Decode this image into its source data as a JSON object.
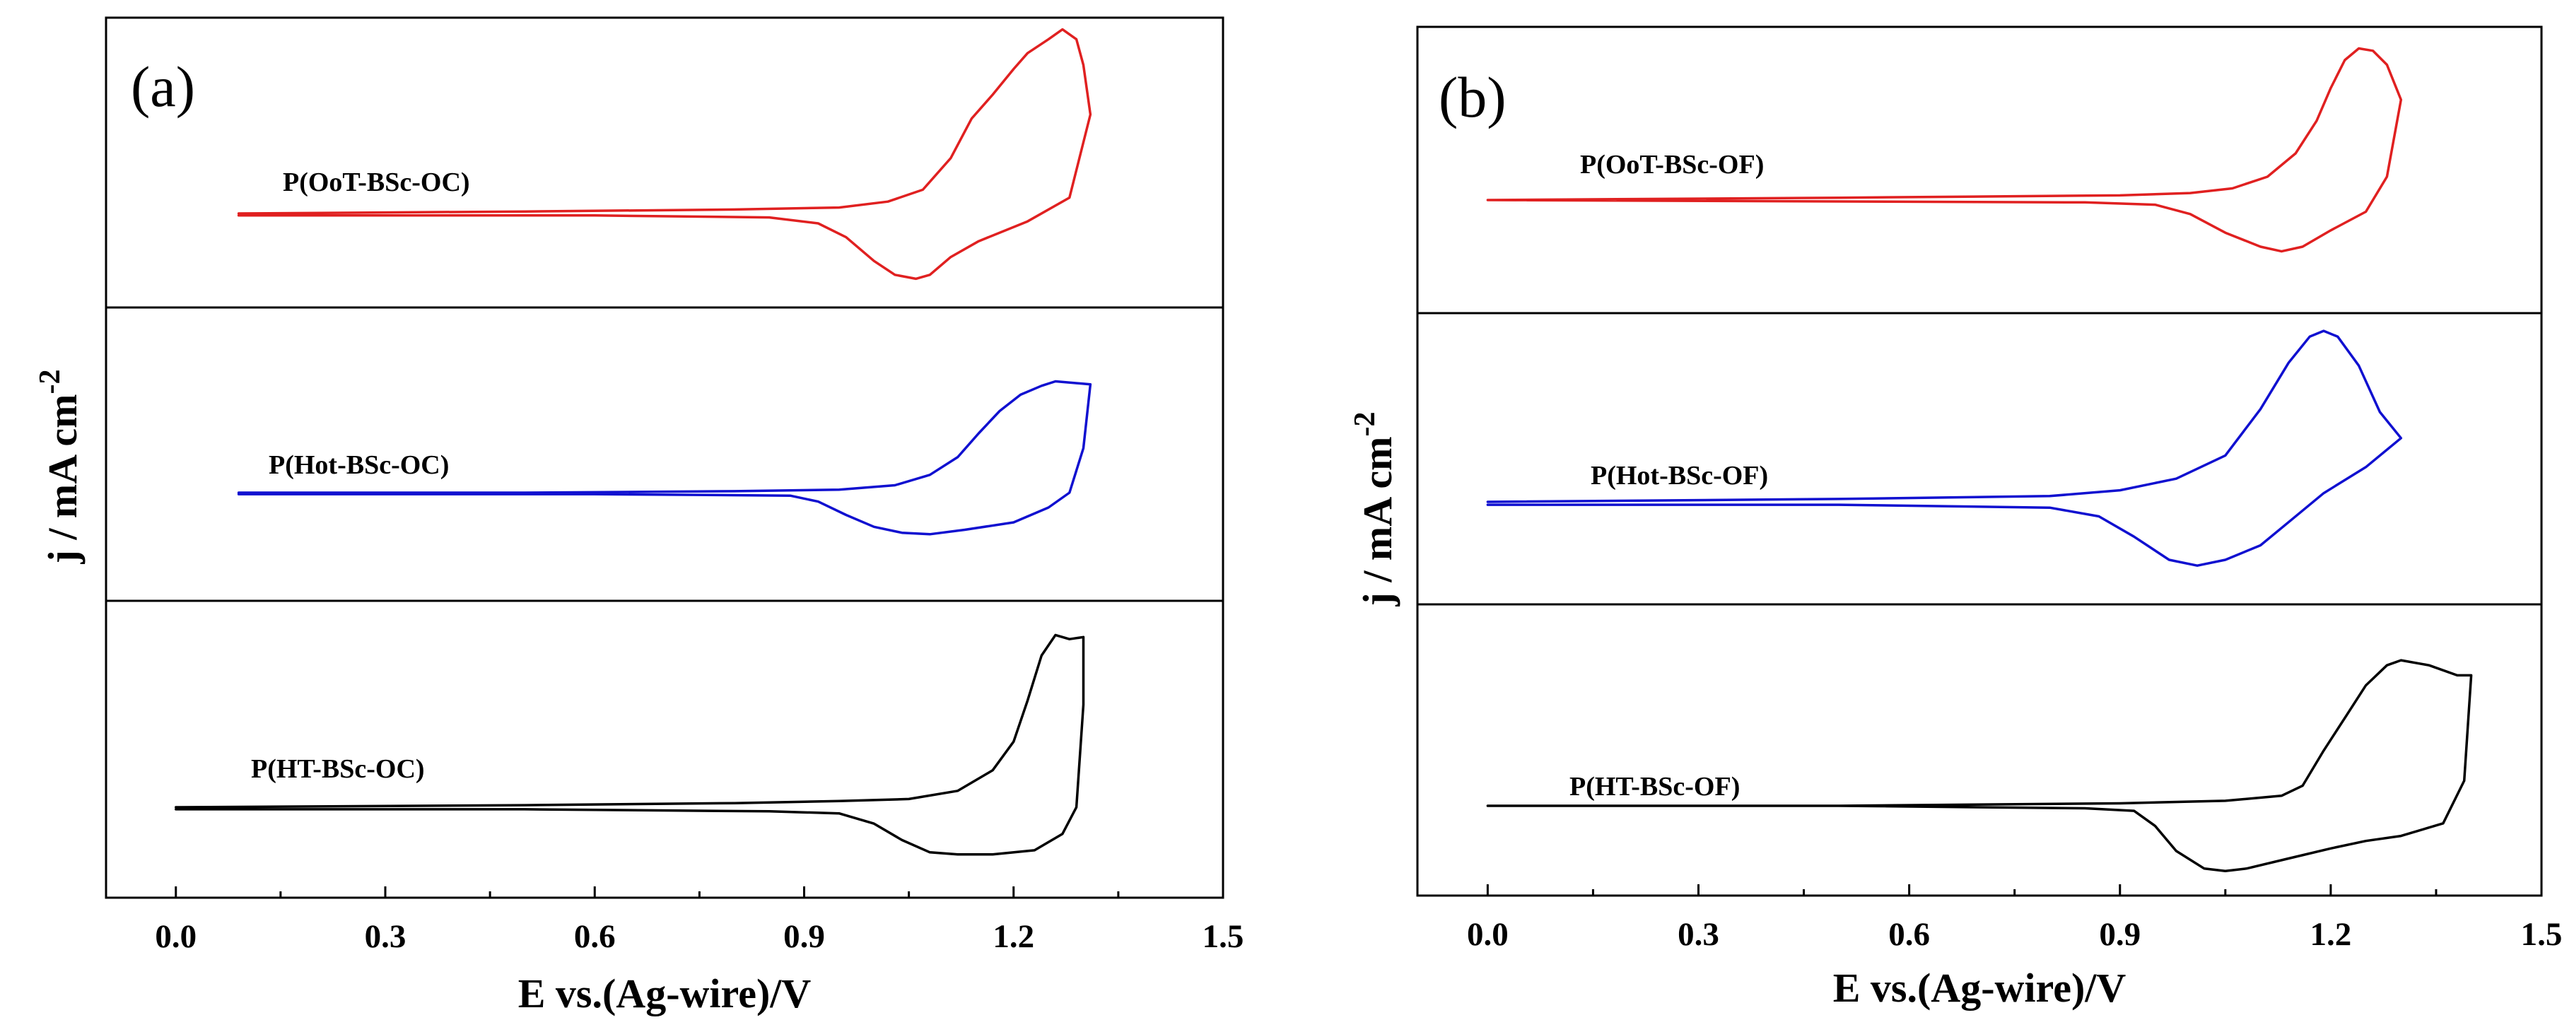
{
  "chart_data": [
    {
      "type": "line",
      "panel_label": "(a)",
      "xlabel": "E vs.(Ag-wire)/V",
      "ylabel": "j / mA cm-2",
      "ylabel_main": "j / mA cm",
      "ylabel_sup": "-2",
      "xlim": [
        -0.1,
        1.5
      ],
      "xticks": [
        "0.0",
        "0.3",
        "0.6",
        "0.9",
        "1.2",
        "1.5"
      ],
      "xtick_values": [
        0.0,
        0.3,
        0.6,
        0.9,
        1.2,
        1.5
      ],
      "grid": false,
      "stacked_subpanels": 3,
      "series": [
        {
          "name": "P(OoT-BSc-OC)",
          "color": "#e02020",
          "panel": 0,
          "anodic": [
            [
              0.09,
              0.0
            ],
            [
              0.5,
              0.01
            ],
            [
              0.8,
              0.02
            ],
            [
              0.95,
              0.03
            ],
            [
              1.02,
              0.06
            ],
            [
              1.07,
              0.12
            ],
            [
              1.11,
              0.28
            ],
            [
              1.14,
              0.48
            ],
            [
              1.17,
              0.6
            ],
            [
              1.2,
              0.73
            ],
            [
              1.22,
              0.81
            ],
            [
              1.25,
              0.88
            ],
            [
              1.27,
              0.93
            ],
            [
              1.29,
              0.88
            ],
            [
              1.3,
              0.75
            ],
            [
              1.31,
              0.5
            ]
          ],
          "cathodic": [
            [
              1.31,
              0.5
            ],
            [
              1.28,
              0.08
            ],
            [
              1.22,
              -0.04
            ],
            [
              1.15,
              -0.14
            ],
            [
              1.11,
              -0.22
            ],
            [
              1.08,
              -0.31
            ],
            [
              1.06,
              -0.33
            ],
            [
              1.03,
              -0.31
            ],
            [
              1.0,
              -0.24
            ],
            [
              0.96,
              -0.12
            ],
            [
              0.92,
              -0.05
            ],
            [
              0.85,
              -0.02
            ],
            [
              0.6,
              -0.01
            ],
            [
              0.09,
              -0.01
            ]
          ]
        },
        {
          "name": "P(Hot-BSc-OC)",
          "color": "#1010d0",
          "panel": 1,
          "anodic": [
            [
              0.09,
              0.0
            ],
            [
              0.5,
              0.0
            ],
            [
              0.8,
              0.01
            ],
            [
              0.95,
              0.02
            ],
            [
              1.03,
              0.05
            ],
            [
              1.08,
              0.12
            ],
            [
              1.12,
              0.24
            ],
            [
              1.15,
              0.4
            ],
            [
              1.18,
              0.55
            ],
            [
              1.21,
              0.66
            ],
            [
              1.24,
              0.72
            ],
            [
              1.26,
              0.75
            ],
            [
              1.31,
              0.73
            ]
          ],
          "cathodic": [
            [
              1.31,
              0.73
            ],
            [
              1.3,
              0.3
            ],
            [
              1.28,
              0.0
            ],
            [
              1.25,
              -0.1
            ],
            [
              1.2,
              -0.2
            ],
            [
              1.13,
              -0.25
            ],
            [
              1.08,
              -0.28
            ],
            [
              1.04,
              -0.27
            ],
            [
              1.0,
              -0.23
            ],
            [
              0.96,
              -0.15
            ],
            [
              0.92,
              -0.06
            ],
            [
              0.88,
              -0.02
            ],
            [
              0.6,
              -0.01
            ],
            [
              0.09,
              -0.01
            ]
          ]
        },
        {
          "name": "P(HT-BSc-OC)",
          "color": "#000000",
          "panel": 2,
          "anodic": [
            [
              0.0,
              0.0
            ],
            [
              0.5,
              0.01
            ],
            [
              0.8,
              0.02
            ],
            [
              0.95,
              0.03
            ],
            [
              1.05,
              0.04
            ],
            [
              1.12,
              0.08
            ],
            [
              1.17,
              0.18
            ],
            [
              1.2,
              0.32
            ],
            [
              1.22,
              0.52
            ],
            [
              1.24,
              0.74
            ],
            [
              1.26,
              0.84
            ],
            [
              1.28,
              0.82
            ],
            [
              1.3,
              0.83
            ]
          ],
          "cathodic": [
            [
              1.3,
              0.83
            ],
            [
              1.3,
              0.5
            ],
            [
              1.29,
              0.0
            ],
            [
              1.27,
              -0.13
            ],
            [
              1.23,
              -0.21
            ],
            [
              1.17,
              -0.23
            ],
            [
              1.12,
              -0.23
            ],
            [
              1.08,
              -0.22
            ],
            [
              1.04,
              -0.16
            ],
            [
              1.0,
              -0.08
            ],
            [
              0.95,
              -0.03
            ],
            [
              0.85,
              -0.02
            ],
            [
              0.5,
              -0.01
            ],
            [
              0.0,
              -0.01
            ]
          ]
        }
      ]
    },
    {
      "type": "line",
      "panel_label": "(b)",
      "xlabel": "E vs.(Ag-wire)/V",
      "ylabel": "j / mA cm-2",
      "ylabel_main": "j / mA cm",
      "ylabel_sup": "-2",
      "xlim": [
        -0.1,
        1.5
      ],
      "xticks": [
        "0.0",
        "0.3",
        "0.6",
        "0.9",
        "1.2",
        "1.5"
      ],
      "xtick_values": [
        0.0,
        0.3,
        0.6,
        0.9,
        1.2,
        1.5
      ],
      "grid": false,
      "stacked_subpanels": 3,
      "series": [
        {
          "name": "P(OoT-BSc-OF)",
          "color": "#e02020",
          "panel": 0,
          "anodic": [
            [
              0.0,
              0.0
            ],
            [
              0.5,
              0.01
            ],
            [
              0.9,
              0.02
            ],
            [
              1.0,
              0.03
            ],
            [
              1.06,
              0.05
            ],
            [
              1.11,
              0.1
            ],
            [
              1.15,
              0.2
            ],
            [
              1.18,
              0.34
            ],
            [
              1.2,
              0.48
            ],
            [
              1.22,
              0.6
            ],
            [
              1.24,
              0.65
            ],
            [
              1.26,
              0.64
            ],
            [
              1.28,
              0.58
            ],
            [
              1.3,
              0.43
            ]
          ],
          "cathodic": [
            [
              1.3,
              0.43
            ],
            [
              1.28,
              0.1
            ],
            [
              1.25,
              -0.05
            ],
            [
              1.2,
              -0.13
            ],
            [
              1.16,
              -0.2
            ],
            [
              1.13,
              -0.22
            ],
            [
              1.1,
              -0.2
            ],
            [
              1.05,
              -0.14
            ],
            [
              1.0,
              -0.06
            ],
            [
              0.95,
              -0.02
            ],
            [
              0.85,
              -0.01
            ],
            [
              0.0,
              0.0
            ]
          ]
        },
        {
          "name": "P(Hot-BSc-OF)",
          "color": "#1010d0",
          "panel": 1,
          "anodic": [
            [
              0.0,
              0.0
            ],
            [
              0.5,
              0.01
            ],
            [
              0.8,
              0.02
            ],
            [
              0.9,
              0.04
            ],
            [
              0.98,
              0.08
            ],
            [
              1.05,
              0.16
            ],
            [
              1.1,
              0.32
            ],
            [
              1.14,
              0.48
            ],
            [
              1.17,
              0.57
            ],
            [
              1.19,
              0.59
            ],
            [
              1.21,
              0.57
            ],
            [
              1.24,
              0.47
            ],
            [
              1.27,
              0.31
            ],
            [
              1.3,
              0.22
            ]
          ],
          "cathodic": [
            [
              1.3,
              0.22
            ],
            [
              1.25,
              0.12
            ],
            [
              1.19,
              0.03
            ],
            [
              1.14,
              -0.07
            ],
            [
              1.1,
              -0.15
            ],
            [
              1.05,
              -0.2
            ],
            [
              1.01,
              -0.22
            ],
            [
              0.97,
              -0.2
            ],
            [
              0.92,
              -0.12
            ],
            [
              0.87,
              -0.05
            ],
            [
              0.8,
              -0.02
            ],
            [
              0.5,
              -0.01
            ],
            [
              0.0,
              -0.01
            ]
          ]
        },
        {
          "name": "P(HT-BSc-OF)",
          "color": "#000000",
          "panel": 2,
          "anodic": [
            [
              0.0,
              0.0
            ],
            [
              0.5,
              0.0
            ],
            [
              0.9,
              0.01
            ],
            [
              1.05,
              0.02
            ],
            [
              1.13,
              0.04
            ],
            [
              1.16,
              0.08
            ],
            [
              1.19,
              0.22
            ],
            [
              1.22,
              0.35
            ],
            [
              1.25,
              0.48
            ],
            [
              1.28,
              0.56
            ],
            [
              1.3,
              0.58
            ],
            [
              1.34,
              0.56
            ],
            [
              1.38,
              0.52
            ],
            [
              1.4,
              0.52
            ]
          ],
          "cathodic": [
            [
              1.4,
              0.52
            ],
            [
              1.39,
              0.1
            ],
            [
              1.36,
              -0.07
            ],
            [
              1.3,
              -0.12
            ],
            [
              1.25,
              -0.14
            ],
            [
              1.2,
              -0.17
            ],
            [
              1.14,
              -0.21
            ],
            [
              1.08,
              -0.25
            ],
            [
              1.05,
              -0.26
            ],
            [
              1.02,
              -0.25
            ],
            [
              0.98,
              -0.18
            ],
            [
              0.95,
              -0.08
            ],
            [
              0.92,
              -0.02
            ],
            [
              0.85,
              -0.01
            ],
            [
              0.5,
              0.0
            ],
            [
              0.0,
              0.0
            ]
          ]
        }
      ]
    }
  ]
}
